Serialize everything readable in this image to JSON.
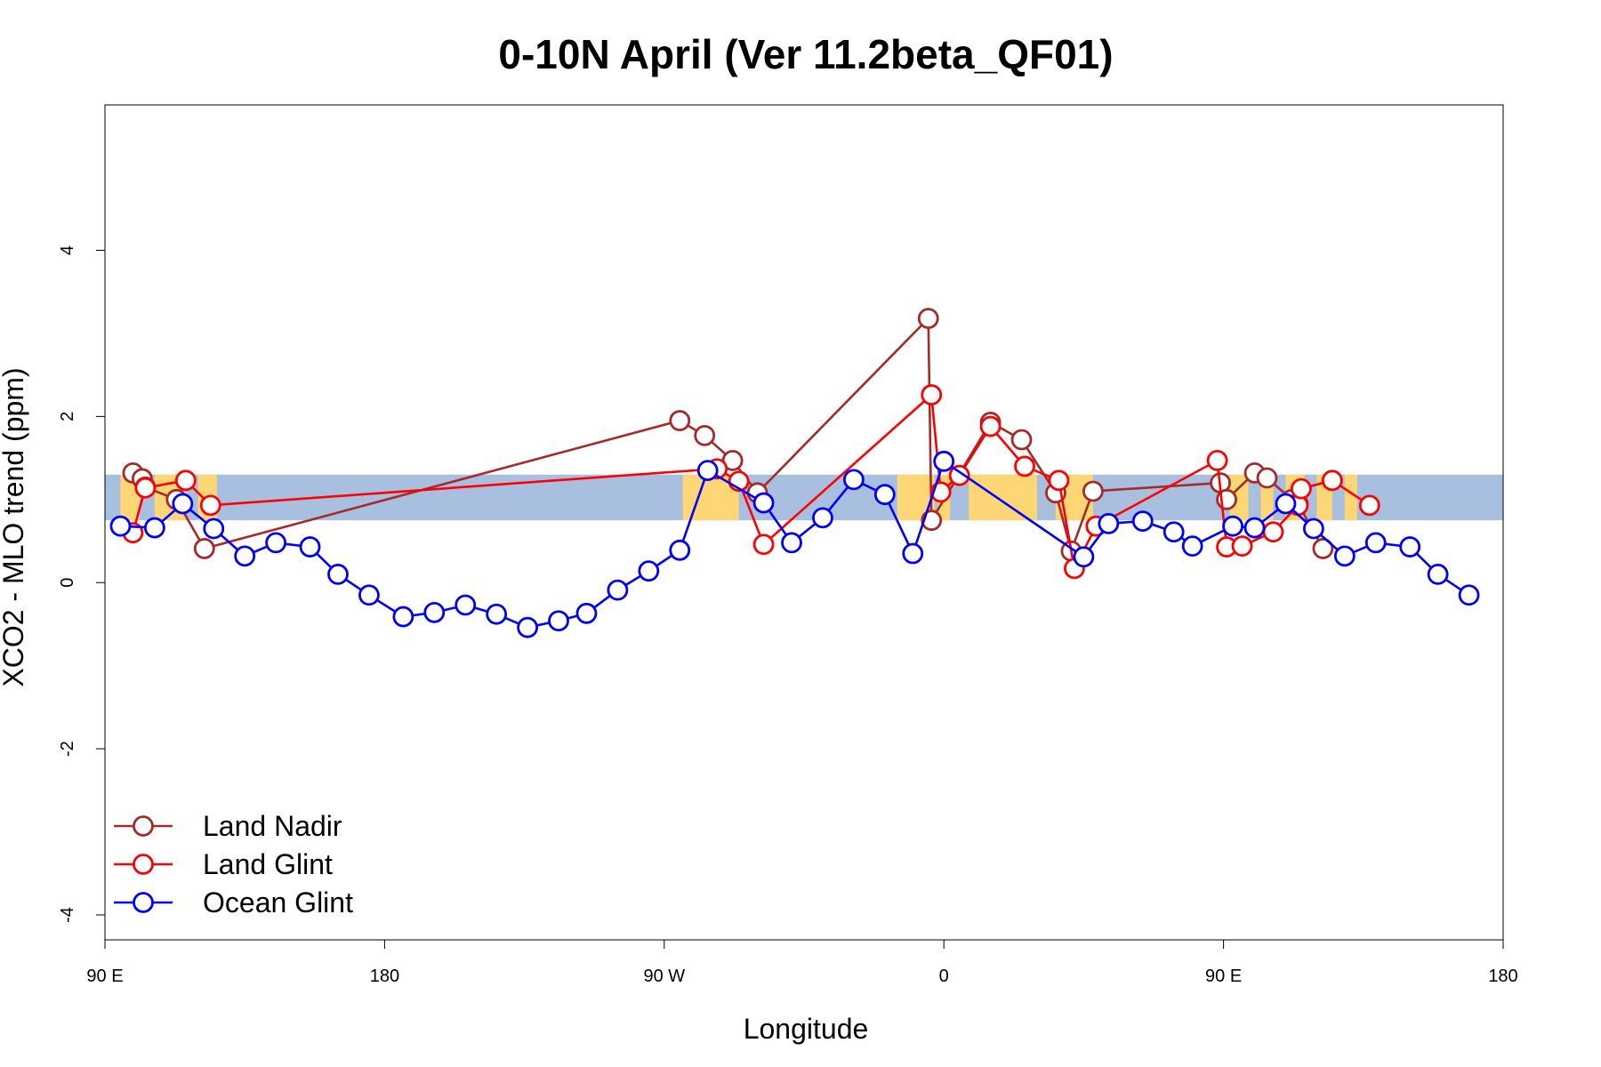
{
  "chart_data": {
    "type": "line",
    "title": "0-10N April (Ver 11.2beta_QF01)",
    "xlabel": "Longitude",
    "ylabel": "XCO2 - MLO trend (ppm)",
    "xlim": [
      90,
      540
    ],
    "ylim": [
      -4.3,
      5.75
    ],
    "x_ticks": [
      {
        "value": 90,
        "label": "90 E"
      },
      {
        "value": 180,
        "label": "180"
      },
      {
        "value": 270,
        "label": "90 W"
      },
      {
        "value": 360,
        "label": "0"
      },
      {
        "value": 450,
        "label": "90 E"
      },
      {
        "value": 540,
        "label": "180"
      }
    ],
    "y_ticks": [
      {
        "value": -4,
        "label": "-4"
      },
      {
        "value": -2,
        "label": "-2"
      },
      {
        "value": 0,
        "label": "0"
      },
      {
        "value": 2,
        "label": "2"
      },
      {
        "value": 4,
        "label": "4"
      }
    ],
    "band": {
      "ymin": 0.75,
      "ymax": 1.3,
      "color": "#a9bfdf"
    },
    "land_color": "#fdd775",
    "land_regions": [
      {
        "x0": 95,
        "x1": 101
      },
      {
        "x0": 106,
        "x1": 116
      },
      {
        "x0": 120,
        "x1": 126
      },
      {
        "x0": 276,
        "x1": 294
      },
      {
        "x0": 345,
        "x1": 357
      },
      {
        "x0": 358,
        "x1": 362
      },
      {
        "x0": 368,
        "x1": 390
      },
      {
        "x0": 396,
        "x1": 408
      },
      {
        "x0": 452,
        "x1": 458
      },
      {
        "x0": 462,
        "x1": 466
      },
      {
        "x0": 470,
        "x1": 476
      },
      {
        "x0": 480,
        "x1": 485
      },
      {
        "x0": 489,
        "x1": 493
      }
    ],
    "legend_position": "bottom-left",
    "series": [
      {
        "name": "Land Nadir",
        "color": "#a52a2a",
        "points": [
          [
            99,
            1.32
          ],
          [
            102,
            1.25
          ],
          [
            103,
            1.15
          ],
          [
            113,
            1.0
          ],
          [
            122,
            0.41
          ],
          [
            275,
            1.95
          ],
          [
            283,
            1.77
          ],
          [
            292,
            1.47
          ],
          [
            300,
            1.08
          ],
          [
            355,
            3.18
          ],
          [
            356,
            0.75
          ],
          [
            375,
            1.93
          ],
          [
            385,
            1.72
          ],
          [
            396,
            1.08
          ],
          [
            401,
            0.38
          ],
          [
            408,
            1.1
          ],
          [
            449,
            1.2
          ],
          [
            451,
            1.0
          ],
          [
            460,
            1.32
          ],
          [
            464,
            1.26
          ],
          [
            472,
            1.0
          ],
          [
            474,
            0.95
          ],
          [
            482,
            0.41
          ]
        ]
      },
      {
        "name": "Land Glint",
        "color": "#ff0000",
        "points": [
          [
            99,
            0.6
          ],
          [
            103,
            1.14
          ],
          [
            116,
            1.23
          ],
          [
            124,
            0.93
          ],
          [
            287,
            1.37
          ],
          [
            294,
            1.22
          ],
          [
            302,
            0.46
          ],
          [
            356,
            2.26
          ],
          [
            359,
            1.09
          ],
          [
            365,
            1.29
          ],
          [
            375,
            1.88
          ],
          [
            386,
            1.4
          ],
          [
            397,
            1.23
          ],
          [
            402,
            0.17
          ],
          [
            409,
            0.68
          ],
          [
            448,
            1.47
          ],
          [
            451,
            0.43
          ],
          [
            456,
            0.44
          ],
          [
            466,
            0.61
          ],
          [
            474,
            0.93
          ],
          [
            475,
            1.13
          ],
          [
            485,
            1.23
          ],
          [
            497,
            0.93
          ]
        ]
      },
      {
        "name": "Ocean Glint",
        "color": "#0000ff",
        "points": [
          [
            95,
            0.68
          ],
          [
            106,
            0.66
          ],
          [
            115,
            0.95
          ],
          [
            125,
            0.65
          ],
          [
            135,
            0.32
          ],
          [
            145,
            0.48
          ],
          [
            156,
            0.43
          ],
          [
            165,
            0.1
          ],
          [
            175,
            -0.15
          ],
          [
            186,
            -0.41
          ],
          [
            196,
            -0.36
          ],
          [
            206,
            -0.27
          ],
          [
            216,
            -0.38
          ],
          [
            226,
            -0.54
          ],
          [
            236,
            -0.46
          ],
          [
            245,
            -0.37
          ],
          [
            255,
            -0.09
          ],
          [
            265,
            0.14
          ],
          [
            275,
            0.39
          ],
          [
            284,
            1.35
          ],
          [
            302,
            0.96
          ],
          [
            311,
            0.48
          ],
          [
            321,
            0.78
          ],
          [
            331,
            1.24
          ],
          [
            341,
            1.06
          ],
          [
            350,
            0.35
          ],
          [
            360,
            1.46
          ],
          [
            405,
            0.31
          ],
          [
            413,
            0.71
          ],
          [
            424,
            0.74
          ],
          [
            434,
            0.61
          ],
          [
            440,
            0.44
          ],
          [
            453,
            0.68
          ],
          [
            460,
            0.66
          ],
          [
            470,
            0.95
          ],
          [
            479,
            0.65
          ],
          [
            489,
            0.32
          ],
          [
            499,
            0.48
          ],
          [
            510,
            0.43
          ],
          [
            519,
            0.1
          ],
          [
            529,
            -0.15
          ]
        ]
      }
    ]
  }
}
